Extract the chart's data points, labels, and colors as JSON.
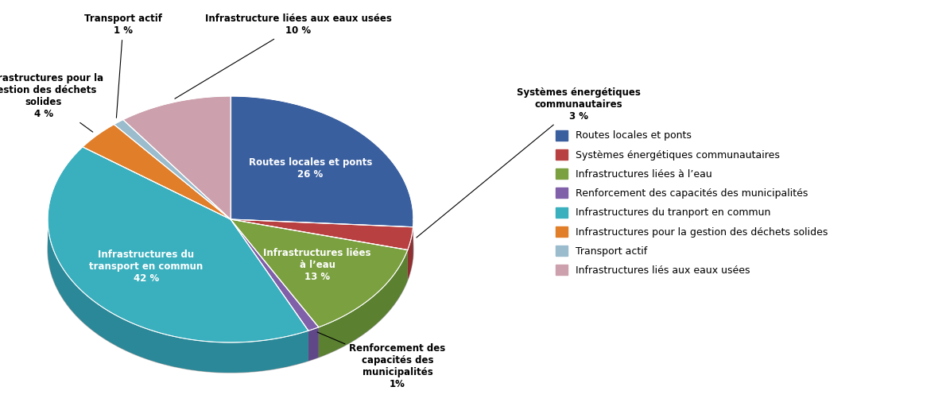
{
  "labels": [
    "Routes locales et ponts",
    "Systèmes énergétiques communautaires",
    "Infrastructures liées à l’eau",
    "Renforcement des capacités des municipalités",
    "Infrastructures du transport en commun",
    "Infrastructures pour la gestion des déchets solides",
    "Transport actif",
    "Infrastructure liées aux eaux usées"
  ],
  "values": [
    26,
    3,
    13,
    1,
    42,
    4,
    1,
    10
  ],
  "colors_top": [
    "#3A5F9F",
    "#B84040",
    "#7BA040",
    "#8060A8",
    "#3AAFBE",
    "#E07E2A",
    "#9ABCCC",
    "#CCA0AC"
  ],
  "colors_side": [
    "#2A4A80",
    "#903030",
    "#5A8030",
    "#604888",
    "#2A8898",
    "#B06020",
    "#7A9AAC",
    "#AC808C"
  ],
  "legend_labels": [
    "Routes locales et ponts",
    "Systèmes énergétiques communautaires",
    "Infrastructures liées à l’eau",
    "Renforcement des capacités des municipalités",
    "Infrastructures du tranport en commun",
    "Infrastructures pour la gestion des déchets solides",
    "Transport actif",
    "Infrastructures liés aux eaux usées"
  ],
  "background_color": "#FFFFFF"
}
